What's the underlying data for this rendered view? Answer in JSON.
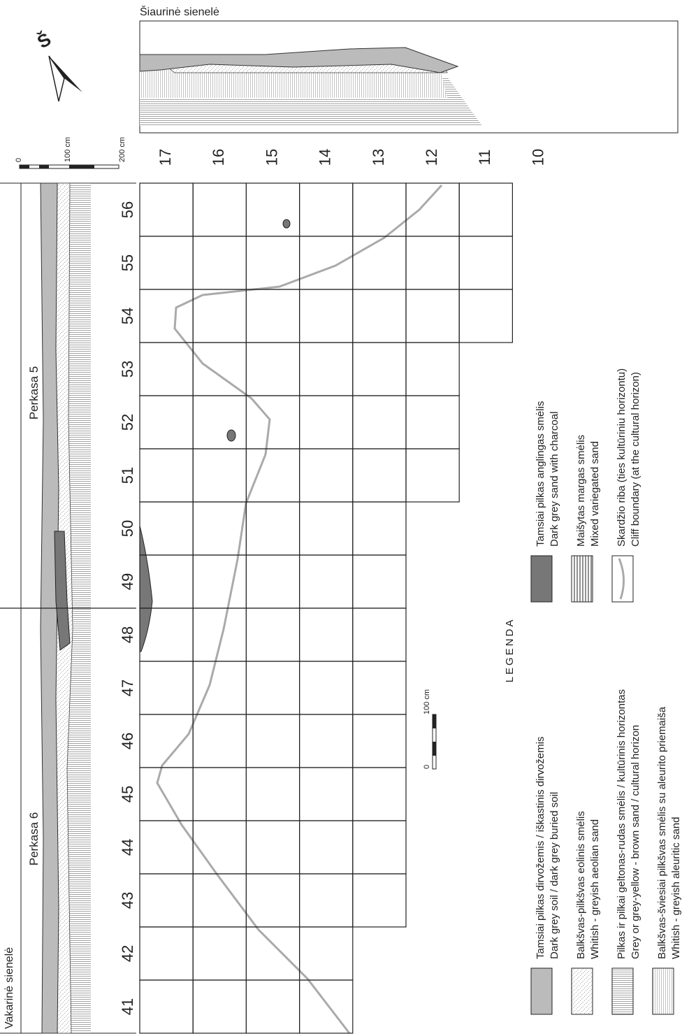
{
  "west_wall": {
    "title": "Vakarinė sienelė"
  },
  "north_wall": {
    "title": "Šiaurinė sienelė"
  },
  "trenches": [
    "Perkasa 6",
    "Perkasa 5"
  ],
  "north_arrow": "Š",
  "scale_main": [
    "0",
    "100 cm",
    "200 cm"
  ],
  "scale_small": [
    "0",
    "100 cm"
  ],
  "rows": [
    "17",
    "16",
    "15",
    "14",
    "13",
    "12",
    "11",
    "10"
  ],
  "columns": [
    "41",
    "42",
    "43",
    "44",
    "45",
    "46",
    "47",
    "48",
    "49",
    "50",
    "51",
    "52",
    "53",
    "54",
    "55",
    "56"
  ],
  "legend": {
    "title": "LEGENDA",
    "items": [
      {
        "lt": "Tamsiai pilkas dirvožemis / iškastinis dirvožemis",
        "en": "Dark grey soil / dark grey buried soil"
      },
      {
        "lt": "Balkšvas-pilkšvas eolinis smėlis",
        "en": "Whitish - greyish aeolian sand"
      },
      {
        "lt": "Pilkas ir pilkai geltonas-rudas smėlis / kultūrinis horizontas",
        "en": "Grey or grey-yellow - brown sand / cultural horizon"
      },
      {
        "lt": "Balkšvas-šviesiai pilkšvas smėlis su aleurito priemaiša",
        "en": "Whitish - greyish aleuritic sand"
      },
      {
        "lt": "Tamsiai pilkas anglingas smėlis",
        "en": "Dark grey sand with charcoal"
      },
      {
        "lt": "Maišytas margas smėlis",
        "en": "Mixed variegated sand"
      },
      {
        "lt": "Skardžio riba (ties kultūriniu horizontu)",
        "en": "Cliff boundary (at the cultural horizon)"
      }
    ]
  }
}
